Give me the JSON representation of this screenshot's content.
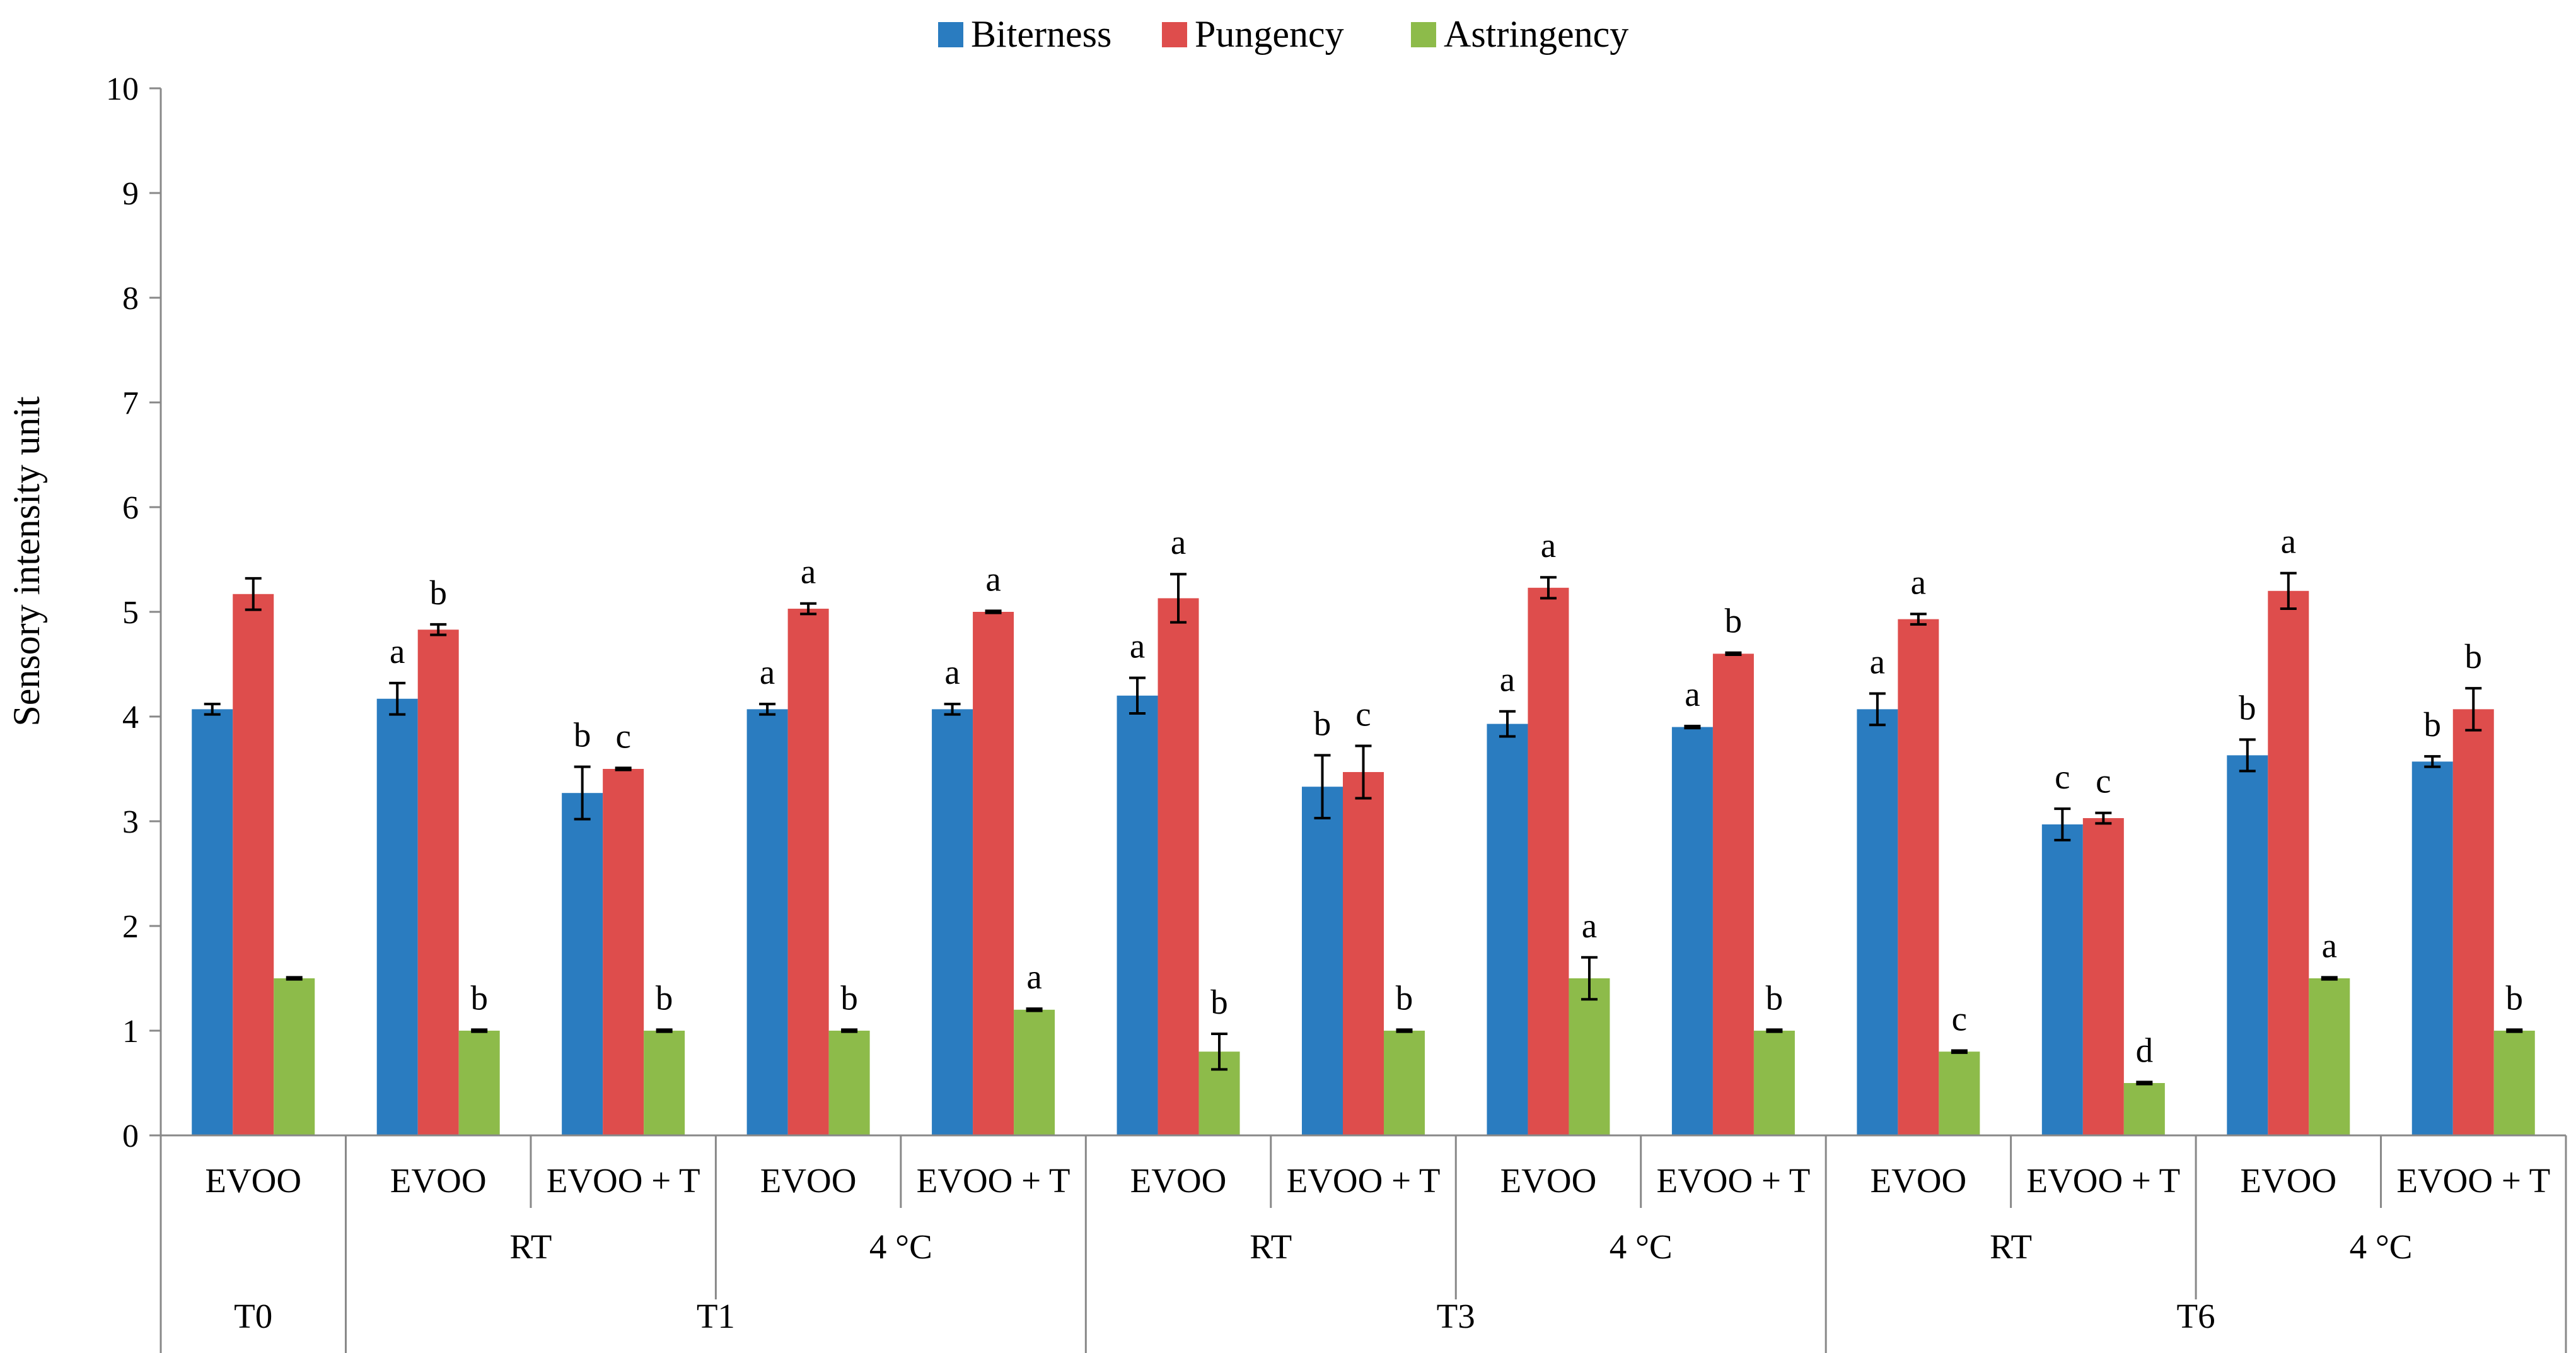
{
  "chart_data": {
    "type": "bar",
    "title": "",
    "xlabel": "",
    "ylabel": "Sensory intensity unit",
    "ylim": [
      0,
      10
    ],
    "yticks": [
      "0",
      "1",
      "2",
      "3",
      "4",
      "5",
      "6",
      "7",
      "8",
      "9",
      "10"
    ],
    "grid": false,
    "legend_position": "top-center",
    "legend": [
      "Biterness",
      "Pungency",
      "Astringency"
    ],
    "series_colors": [
      "#2a7cc0",
      "#de4d4c",
      "#8dbb4a"
    ],
    "categories": [
      "EVOO",
      "EVOO",
      "EVOO + T",
      "EVOO",
      "EVOO + T",
      "EVOO",
      "EVOO + T",
      "EVOO",
      "EVOO + T",
      "EVOO",
      "EVOO + T",
      "EVOO",
      "EVOO + T"
    ],
    "storage_groups": [
      {
        "label": "",
        "start": 0,
        "count": 1
      },
      {
        "label": "RT",
        "start": 1,
        "count": 2
      },
      {
        "label": "4 °C",
        "start": 3,
        "count": 2
      },
      {
        "label": "RT",
        "start": 5,
        "count": 2
      },
      {
        "label": "4 °C",
        "start": 7,
        "count": 2
      },
      {
        "label": "RT",
        "start": 9,
        "count": 2
      },
      {
        "label": "4 °C",
        "start": 11,
        "count": 2
      }
    ],
    "time_groups": [
      {
        "label": "T0",
        "start": 0,
        "count": 1
      },
      {
        "label": "T1",
        "start": 1,
        "count": 4
      },
      {
        "label": "T3",
        "start": 5,
        "count": 4
      },
      {
        "label": "T6",
        "start": 9,
        "count": 4
      }
    ],
    "series": [
      {
        "name": "Biterness",
        "values": [
          4.07,
          4.17,
          3.27,
          4.07,
          4.07,
          4.2,
          3.33,
          3.93,
          3.9,
          4.07,
          2.97,
          3.63,
          3.57
        ],
        "errors": [
          0.05,
          0.15,
          0.25,
          0.05,
          0.05,
          0.17,
          0.3,
          0.12,
          0.01,
          0.15,
          0.15,
          0.15,
          0.05
        ],
        "labels": [
          "",
          "a",
          "b",
          "a",
          "a",
          "a",
          "b",
          "a",
          "a",
          "a",
          "c",
          "b",
          "b"
        ]
      },
      {
        "name": "Pungency",
        "values": [
          5.17,
          4.83,
          3.5,
          5.03,
          5.0,
          5.13,
          3.47,
          5.23,
          4.6,
          4.93,
          3.03,
          5.2,
          4.07
        ],
        "errors": [
          0.15,
          0.05,
          0.01,
          0.05,
          0.01,
          0.23,
          0.25,
          0.1,
          0.01,
          0.05,
          0.05,
          0.17,
          0.2
        ],
        "labels": [
          "",
          "b",
          "c",
          "a",
          "a",
          "a",
          "c",
          "a",
          "b",
          "a",
          "c",
          "a",
          "b"
        ]
      },
      {
        "name": "Astringency",
        "values": [
          1.5,
          1.0,
          1.0,
          1.0,
          1.2,
          0.8,
          1.0,
          1.5,
          1.0,
          0.8,
          0.5,
          1.5,
          1.0
        ],
        "errors": [
          0.01,
          0.01,
          0.01,
          0.01,
          0.01,
          0.17,
          0.01,
          0.2,
          0.01,
          0.01,
          0.01,
          0.01,
          0.01
        ],
        "labels": [
          "",
          "b",
          "b",
          "b",
          "a",
          "b",
          "b",
          "a",
          "b",
          "c",
          "d",
          "a",
          "b"
        ]
      }
    ]
  }
}
